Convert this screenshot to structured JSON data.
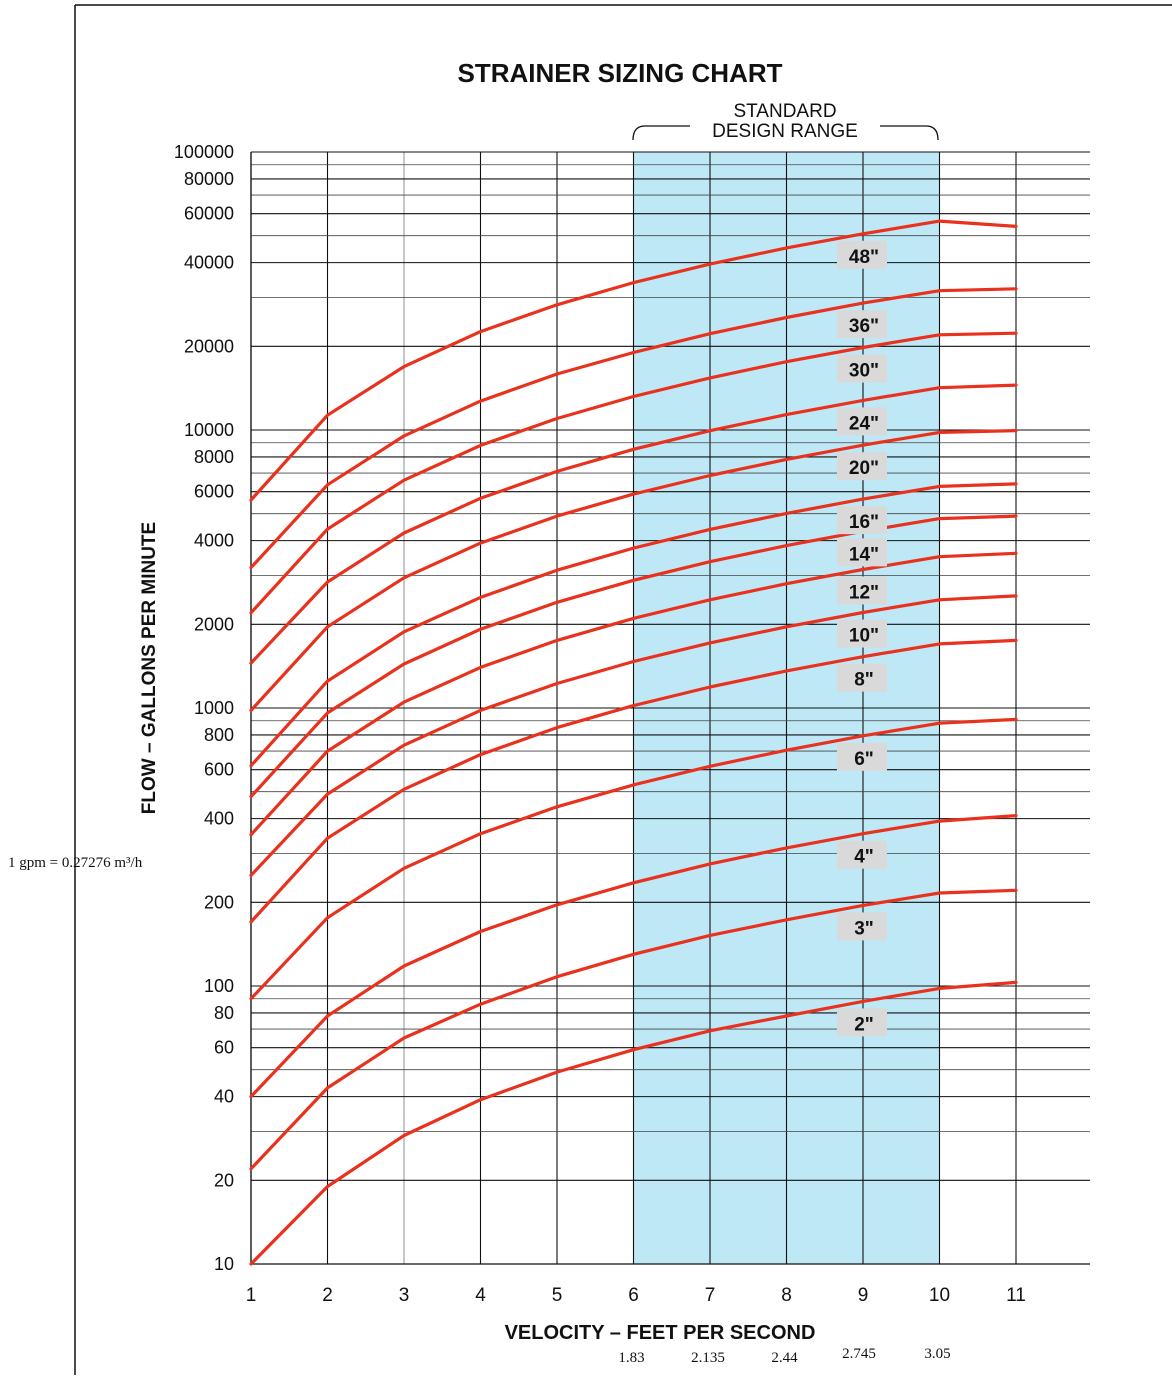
{
  "chart_data": {
    "type": "line",
    "title": "STRAINER SIZING CHART",
    "xlabel": "VELOCITY – FEET PER SECOND",
    "ylabel": "FLOW – GALLONS PER MINUTE",
    "x_scale": "linear",
    "y_scale": "log",
    "xlim": [
      1,
      12
    ],
    "ylim": [
      10,
      100000
    ],
    "x_ticks": [
      1,
      2,
      3,
      4,
      5,
      6,
      7,
      8,
      9,
      10,
      11
    ],
    "y_ticks": [
      10,
      20,
      40,
      60,
      80,
      100,
      200,
      400,
      600,
      800,
      1000,
      2000,
      4000,
      6000,
      8000,
      10000,
      20000,
      40000,
      60000,
      80000,
      100000
    ],
    "grid": true,
    "band": {
      "label_line1": "STANDARD",
      "label_line2": "DESIGN RANGE",
      "x_range": [
        6,
        10
      ],
      "color": "#bfe8f7"
    },
    "x": [
      1,
      2,
      3,
      4,
      5,
      6,
      7,
      8,
      9,
      10,
      11
    ],
    "series": [
      {
        "name": "2\"",
        "values": [
          10,
          19,
          29,
          39,
          49,
          59,
          69,
          78,
          88,
          98,
          103
        ]
      },
      {
        "name": "3\"",
        "values": [
          22,
          43,
          65,
          86,
          108,
          130,
          152,
          173,
          195,
          216,
          221
        ]
      },
      {
        "name": "4\"",
        "values": [
          40,
          78,
          118,
          157,
          196,
          235,
          275,
          314,
          353,
          392,
          410
        ]
      },
      {
        "name": "6\"",
        "values": [
          90,
          176,
          265,
          353,
          441,
          529,
          617,
          705,
          794,
          882,
          910
        ]
      },
      {
        "name": "8\"",
        "values": [
          170,
          340,
          510,
          680,
          850,
          1020,
          1190,
          1360,
          1530,
          1700,
          1750
        ]
      },
      {
        "name": "10\"",
        "values": [
          250,
          490,
          735,
          980,
          1225,
          1470,
          1715,
          1960,
          2205,
          2450,
          2530
        ]
      },
      {
        "name": "12\"",
        "values": [
          350,
          700,
          1050,
          1400,
          1750,
          2100,
          2450,
          2800,
          3150,
          3500,
          3600
        ]
      },
      {
        "name": "14\"",
        "values": [
          480,
          960,
          1440,
          1920,
          2400,
          2880,
          3360,
          3840,
          4320,
          4800,
          4900
        ]
      },
      {
        "name": "16\"",
        "values": [
          620,
          1250,
          1880,
          2500,
          3130,
          3760,
          4390,
          5010,
          5640,
          6270,
          6400
        ]
      },
      {
        "name": "20\"",
        "values": [
          980,
          1960,
          2940,
          3920,
          4900,
          5880,
          6860,
          7840,
          8820,
          9800,
          9950
        ]
      },
      {
        "name": "24\"",
        "values": [
          1450,
          2840,
          4260,
          5680,
          7100,
          8520,
          9940,
          11360,
          12780,
          14200,
          14500
        ]
      },
      {
        "name": "30\"",
        "values": [
          2200,
          4400,
          6600,
          8800,
          11000,
          13200,
          15400,
          17600,
          19800,
          22000,
          22300
        ]
      },
      {
        "name": "36\"",
        "values": [
          3200,
          6350,
          9520,
          12700,
          15900,
          19000,
          22200,
          25400,
          28600,
          31700,
          32200
        ]
      },
      {
        "name": "48\"",
        "values": [
          5600,
          11300,
          16900,
          22600,
          28200,
          33900,
          39500,
          45200,
          50800,
          56400,
          54000
        ]
      }
    ],
    "line_color": "#e8321e",
    "secondary_x_labels": [
      "1.83",
      "2.135",
      "2.44",
      "2.745",
      "3.05"
    ],
    "secondary_x_positions": [
      6,
      7,
      8,
      9,
      10
    ],
    "note": "1 gpm = 0.27276 m³/h"
  }
}
